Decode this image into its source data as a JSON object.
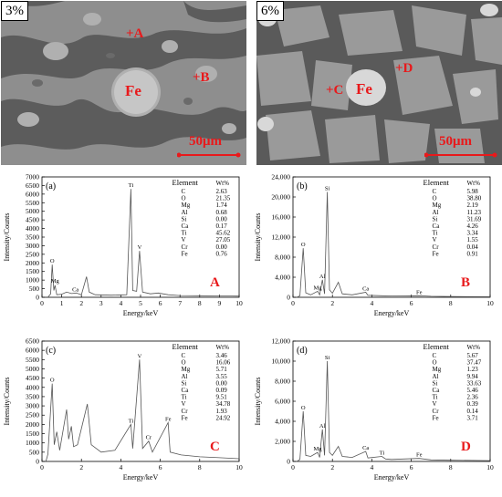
{
  "micrographs": [
    {
      "tag": "3%",
      "points": [
        "+A",
        "+B"
      ],
      "fe": "Fe",
      "scale": "50μm"
    },
    {
      "tag": "6%",
      "points": [
        "+C",
        "+D"
      ],
      "fe": "Fe",
      "scale": "50μm"
    }
  ],
  "chart_data": [
    {
      "type": "line",
      "panel": "(a)",
      "point": "A",
      "xlabel": "Energy/keV",
      "ylabel": "Intensity/Counts",
      "xlim": [
        0,
        10
      ],
      "ylim": [
        0,
        7000
      ],
      "x_ticks": [
        "0",
        "1",
        "2",
        "3",
        "4",
        "5",
        "6",
        "7",
        "8",
        "9",
        "10"
      ],
      "y_ticks": [
        "0",
        "500",
        "1000",
        "1500",
        "2000",
        "2500",
        "3000",
        "3500",
        "4000",
        "4500",
        "5000",
        "5500",
        "6000",
        "6500",
        "7000"
      ],
      "table_header": [
        "Element",
        "Wt%"
      ],
      "table": [
        [
          "C",
          "2.63"
        ],
        [
          "O",
          "21.35"
        ],
        [
          "Mg",
          "1.74"
        ],
        [
          "Al",
          "0.68"
        ],
        [
          "Si",
          "0.00"
        ],
        [
          "Ca",
          "0.17"
        ],
        [
          "Ti",
          "45.62"
        ],
        [
          "V",
          "27.05"
        ],
        [
          "Cr",
          "0.00"
        ],
        [
          "Fe",
          "0.76"
        ]
      ],
      "peaks": [
        {
          "label": "O",
          "x": 0.52,
          "y": 1900
        },
        {
          "label": "Mg",
          "x": 0.66,
          "y": 750
        },
        {
          "label": "Ca",
          "x": 1.7,
          "y": 230
        },
        {
          "label": "Ti",
          "x": 4.51,
          "y": 6300
        },
        {
          "label": "V",
          "x": 4.95,
          "y": 2700
        }
      ],
      "spectrum": [
        [
          0.3,
          0
        ],
        [
          0.44,
          200
        ],
        [
          0.52,
          1900
        ],
        [
          0.6,
          400
        ],
        [
          0.66,
          700
        ],
        [
          0.75,
          150
        ],
        [
          1.0,
          180
        ],
        [
          1.25,
          300
        ],
        [
          1.5,
          220
        ],
        [
          1.74,
          250
        ],
        [
          2.0,
          150
        ],
        [
          2.26,
          1200
        ],
        [
          2.4,
          300
        ],
        [
          2.7,
          150
        ],
        [
          3.5,
          120
        ],
        [
          4.3,
          150
        ],
        [
          4.51,
          6300
        ],
        [
          4.6,
          400
        ],
        [
          4.8,
          350
        ],
        [
          4.95,
          2700
        ],
        [
          5.1,
          300
        ],
        [
          5.5,
          200
        ],
        [
          5.9,
          250
        ],
        [
          6.4,
          150
        ],
        [
          7,
          100
        ],
        [
          8,
          90
        ],
        [
          9,
          80
        ],
        [
          10,
          70
        ]
      ]
    },
    {
      "type": "line",
      "panel": "(b)",
      "point": "B",
      "xlabel": "Energy/keV",
      "ylabel": "Intensity/Counts",
      "xlim": [
        0,
        10
      ],
      "ylim": [
        0,
        24000
      ],
      "x_ticks": [
        "0",
        "2",
        "4",
        "6",
        "8",
        "10"
      ],
      "y_ticks": [
        "0",
        "4,000",
        "8,000",
        "12,000",
        "16,000",
        "20,000",
        "24,000"
      ],
      "table_header": [
        "Element",
        "Wt%"
      ],
      "table": [
        [
          "C",
          "5.98"
        ],
        [
          "O",
          "38.80"
        ],
        [
          "Mg",
          "2.19"
        ],
        [
          "Al",
          "11.23"
        ],
        [
          "Si",
          "31.69"
        ],
        [
          "Ca",
          "4.26"
        ],
        [
          "Ti",
          "3.34"
        ],
        [
          "V",
          "1.55"
        ],
        [
          "Cr",
          "0.04"
        ],
        [
          "Fe",
          "0.91"
        ]
      ],
      "peaks": [
        {
          "label": "O",
          "x": 0.52,
          "y": 9800
        },
        {
          "label": "Mg",
          "x": 1.25,
          "y": 1200
        },
        {
          "label": "Al",
          "x": 1.49,
          "y": 3500
        },
        {
          "label": "Si",
          "x": 1.74,
          "y": 21000
        },
        {
          "label": "Ca",
          "x": 3.69,
          "y": 1000
        },
        {
          "label": "Fe",
          "x": 6.4,
          "y": 300
        }
      ],
      "spectrum": [
        [
          0.2,
          0
        ],
        [
          0.35,
          300
        ],
        [
          0.52,
          9800
        ],
        [
          0.65,
          900
        ],
        [
          0.9,
          500
        ],
        [
          1.25,
          1200
        ],
        [
          1.35,
          500
        ],
        [
          1.49,
          3500
        ],
        [
          1.6,
          700
        ],
        [
          1.74,
          21000
        ],
        [
          1.85,
          1500
        ],
        [
          2.0,
          800
        ],
        [
          2.3,
          3000
        ],
        [
          2.5,
          700
        ],
        [
          3.0,
          500
        ],
        [
          3.69,
          1000
        ],
        [
          3.8,
          400
        ],
        [
          4.5,
          300
        ],
        [
          5,
          250
        ],
        [
          6.4,
          300
        ],
        [
          7,
          200
        ],
        [
          8,
          150
        ],
        [
          10,
          100
        ]
      ]
    },
    {
      "type": "line",
      "panel": "(c)",
      "point": "C",
      "xlabel": "Energy/keV",
      "ylabel": "Intensity/Counts",
      "xlim": [
        0,
        10
      ],
      "ylim": [
        0,
        6500
      ],
      "x_ticks": [
        "0",
        "2",
        "4",
        "6",
        "8",
        "10"
      ],
      "y_ticks": [
        "0",
        "500",
        "1000",
        "1500",
        "2000",
        "2500",
        "3000",
        "3500",
        "4000",
        "4500",
        "5000",
        "5500",
        "6000",
        "6500"
      ],
      "table_header": [
        "Element",
        "Wt%"
      ],
      "table": [
        [
          "C",
          "3.46"
        ],
        [
          "O",
          "16.06"
        ],
        [
          "Mg",
          "5.71"
        ],
        [
          "Al",
          "3.55"
        ],
        [
          "Si",
          "0.00"
        ],
        [
          "Ca",
          "0.09"
        ],
        [
          "Ti",
          "9.51"
        ],
        [
          "V",
          "34.78"
        ],
        [
          "Cr",
          "1.93"
        ],
        [
          "Fe",
          "24.92"
        ]
      ],
      "peaks": [
        {
          "label": "O",
          "x": 0.52,
          "y": 4200
        },
        {
          "label": "Ti",
          "x": 4.51,
          "y": 2000
        },
        {
          "label": "V",
          "x": 4.95,
          "y": 5500
        },
        {
          "label": "Cr",
          "x": 5.41,
          "y": 1100
        },
        {
          "label": "Fe",
          "x": 6.4,
          "y": 2100
        }
      ],
      "spectrum": [
        [
          0.2,
          0
        ],
        [
          0.3,
          400
        ],
        [
          0.52,
          4200
        ],
        [
          0.62,
          900
        ],
        [
          0.75,
          1600
        ],
        [
          0.9,
          600
        ],
        [
          1.25,
          2800
        ],
        [
          1.35,
          1200
        ],
        [
          1.49,
          1900
        ],
        [
          1.6,
          800
        ],
        [
          1.8,
          900
        ],
        [
          2.3,
          3100
        ],
        [
          2.5,
          900
        ],
        [
          3.0,
          500
        ],
        [
          3.7,
          600
        ],
        [
          4.51,
          2000
        ],
        [
          4.6,
          700
        ],
        [
          4.95,
          5500
        ],
        [
          5.1,
          700
        ],
        [
          5.41,
          1100
        ],
        [
          5.6,
          500
        ],
        [
          6.4,
          2100
        ],
        [
          6.5,
          500
        ],
        [
          7.06,
          350
        ],
        [
          8,
          250
        ],
        [
          9,
          200
        ],
        [
          10,
          150
        ]
      ]
    },
    {
      "type": "line",
      "panel": "(d)",
      "point": "D",
      "xlabel": "Energy/keV",
      "ylabel": "Intensity/Counts",
      "xlim": [
        0,
        10
      ],
      "ylim": [
        0,
        12000
      ],
      "x_ticks": [
        "0",
        "2",
        "4",
        "6",
        "8",
        "10"
      ],
      "y_ticks": [
        "0",
        "2,000",
        "4,000",
        "6,000",
        "8,000",
        "10,000",
        "12,000"
      ],
      "table_header": [
        "Element",
        "Wt%"
      ],
      "table": [
        [
          "C",
          "5.67"
        ],
        [
          "O",
          "37.47"
        ],
        [
          "Mg",
          "1.23"
        ],
        [
          "Al",
          "9.94"
        ],
        [
          "Si",
          "33.63"
        ],
        [
          "Ca",
          "5.46"
        ],
        [
          "Ti",
          "2.36"
        ],
        [
          "V",
          "0.39"
        ],
        [
          "Cr",
          "0.14"
        ],
        [
          "Fe",
          "3.71"
        ]
      ],
      "peaks": [
        {
          "label": "O",
          "x": 0.52,
          "y": 5000
        },
        {
          "label": "Mg",
          "x": 1.25,
          "y": 900
        },
        {
          "label": "Al",
          "x": 1.49,
          "y": 3200
        },
        {
          "label": "Si",
          "x": 1.74,
          "y": 10000
        },
        {
          "label": "Ca",
          "x": 3.69,
          "y": 1000
        },
        {
          "label": "Ti",
          "x": 4.51,
          "y": 500
        },
        {
          "label": "Fe",
          "x": 6.4,
          "y": 300
        }
      ],
      "spectrum": [
        [
          0.2,
          0
        ],
        [
          0.35,
          200
        ],
        [
          0.52,
          5000
        ],
        [
          0.65,
          600
        ],
        [
          0.9,
          500
        ],
        [
          1.25,
          900
        ],
        [
          1.35,
          400
        ],
        [
          1.49,
          3200
        ],
        [
          1.6,
          600
        ],
        [
          1.74,
          10000
        ],
        [
          1.85,
          900
        ],
        [
          2.0,
          600
        ],
        [
          2.3,
          1500
        ],
        [
          2.5,
          500
        ],
        [
          3.0,
          400
        ],
        [
          3.69,
          1000
        ],
        [
          3.8,
          350
        ],
        [
          4.51,
          500
        ],
        [
          4.7,
          250
        ],
        [
          5,
          200
        ],
        [
          6.4,
          300
        ],
        [
          7,
          150
        ],
        [
          8,
          120
        ],
        [
          10,
          80
        ]
      ]
    }
  ]
}
